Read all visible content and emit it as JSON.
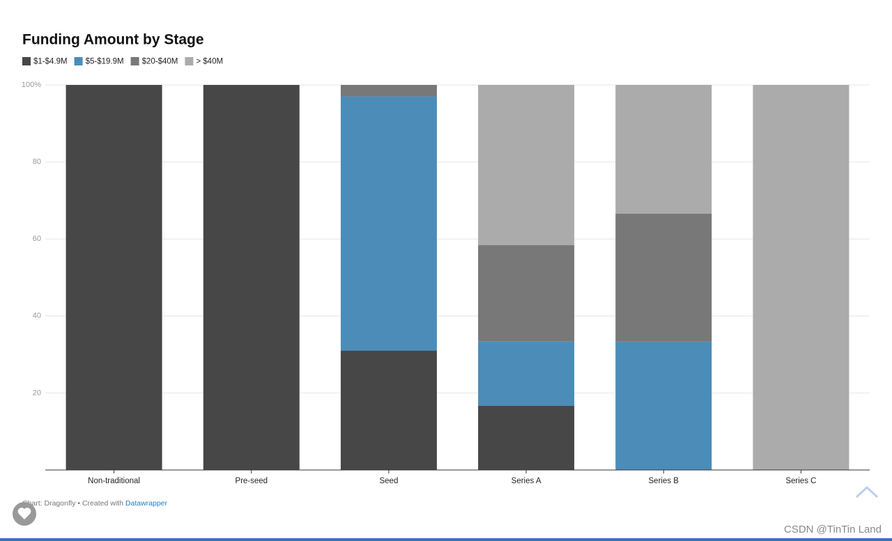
{
  "chart_data": {
    "type": "stacked-bar",
    "title": "Funding Amount by Stage",
    "categories": [
      "Non-traditional",
      "Pre-seed",
      "Seed",
      "Series A",
      "Series B",
      "Series C"
    ],
    "series": [
      {
        "name": "$1-$4.9M",
        "color": "#474747",
        "values": [
          100,
          100,
          31,
          16.7,
          0,
          0
        ]
      },
      {
        "name": "$5-$19.9M",
        "color": "#4b8db8",
        "values": [
          0,
          0,
          66,
          16.7,
          33.3,
          0
        ]
      },
      {
        "name": "$20-$40M",
        "color": "#787878",
        "values": [
          0,
          0,
          3,
          25,
          33.3,
          0
        ]
      },
      {
        "name": "> $40M",
        "color": "#ababab",
        "values": [
          0,
          0,
          0,
          41.6,
          33.4,
          100
        ]
      }
    ],
    "ylim": [
      0,
      100
    ],
    "yticks": [
      20,
      40,
      60,
      80,
      {
        "value": 100,
        "label": "100%"
      }
    ],
    "grid": true
  },
  "footer": {
    "text": "Chart: Dragonfly • Created with",
    "link": "Datawrapper"
  },
  "watermark": "CSDN @TinTin Land"
}
